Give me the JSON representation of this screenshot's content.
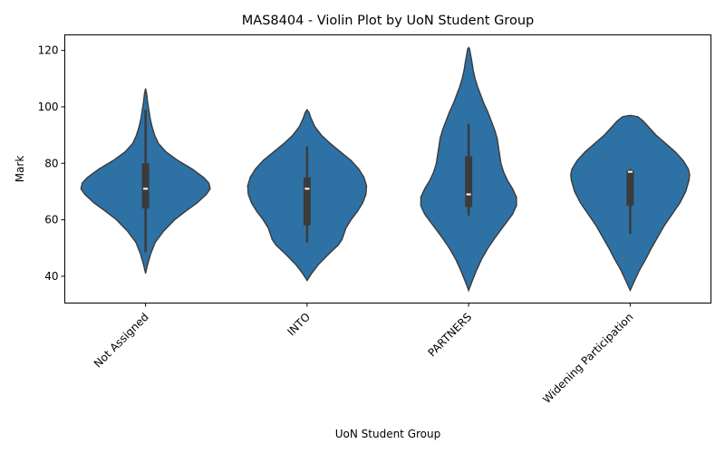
{
  "chart_data": {
    "type": "violin",
    "title": "MAS8404 - Violin Plot by UoN Student Group",
    "xlabel": "UoN Student Group",
    "ylabel": "Mark",
    "categories": [
      "Not Assigned",
      "INTO",
      "PARTNERS",
      "Widening Participation"
    ],
    "ylim": [
      30.5,
      125.5
    ],
    "yticks": [
      40,
      60,
      80,
      100,
      120
    ],
    "grid": false,
    "legend": "none",
    "fill_color": "#2e71a5",
    "edge_color": "#3b3b3b",
    "box_color": "#3b3b3b",
    "median_color": "#ffffff",
    "violins": [
      {
        "category": "Not Assigned",
        "range": [
          41,
          106.5
        ],
        "profile": [
          [
            41,
            0
          ],
          [
            44,
            0.03
          ],
          [
            48,
            0.08
          ],
          [
            52,
            0.15
          ],
          [
            56,
            0.28
          ],
          [
            60,
            0.45
          ],
          [
            63,
            0.62
          ],
          [
            66,
            0.8
          ],
          [
            69,
            0.94
          ],
          [
            71,
            1.0
          ],
          [
            73,
            0.98
          ],
          [
            75,
            0.9
          ],
          [
            78,
            0.72
          ],
          [
            81,
            0.5
          ],
          [
            84,
            0.32
          ],
          [
            87,
            0.2
          ],
          [
            90,
            0.14
          ],
          [
            93,
            0.1
          ],
          [
            96,
            0.07
          ],
          [
            99,
            0.05
          ],
          [
            102,
            0.03
          ],
          [
            104.5,
            0.018
          ],
          [
            106.5,
            0
          ]
        ],
        "max_half_width": 1.0,
        "whisker": [
          48.5,
          99
        ],
        "box": [
          64,
          80
        ],
        "median": 71
      },
      {
        "category": "INTO",
        "range": [
          38.5,
          99
        ],
        "profile": [
          [
            38.5,
            0
          ],
          [
            41,
            0.07
          ],
          [
            44,
            0.17
          ],
          [
            48,
            0.34
          ],
          [
            51,
            0.48
          ],
          [
            53,
            0.54
          ],
          [
            55,
            0.57
          ],
          [
            57,
            0.6
          ],
          [
            60,
            0.68
          ],
          [
            63,
            0.78
          ],
          [
            66,
            0.86
          ],
          [
            69,
            0.91
          ],
          [
            72,
            0.92
          ],
          [
            75,
            0.88
          ],
          [
            78,
            0.8
          ],
          [
            81,
            0.68
          ],
          [
            84,
            0.52
          ],
          [
            87,
            0.36
          ],
          [
            90,
            0.22
          ],
          [
            93,
            0.12
          ],
          [
            96,
            0.06
          ],
          [
            98,
            0.03
          ],
          [
            99,
            0
          ]
        ],
        "max_half_width": 0.92,
        "whisker": [
          52,
          86
        ],
        "box": [
          58,
          75
        ],
        "median": 71
      },
      {
        "category": "PARTNERS",
        "range": [
          35,
          121
        ],
        "profile": [
          [
            35,
            0
          ],
          [
            38,
            0.05
          ],
          [
            42,
            0.12
          ],
          [
            46,
            0.2
          ],
          [
            50,
            0.3
          ],
          [
            54,
            0.42
          ],
          [
            58,
            0.55
          ],
          [
            62,
            0.68
          ],
          [
            65,
            0.74
          ],
          [
            68,
            0.74
          ],
          [
            71,
            0.68
          ],
          [
            74,
            0.6
          ],
          [
            77,
            0.54
          ],
          [
            80,
            0.5
          ],
          [
            83,
            0.48
          ],
          [
            86,
            0.46
          ],
          [
            89,
            0.44
          ],
          [
            92,
            0.4
          ],
          [
            95,
            0.35
          ],
          [
            98,
            0.3
          ],
          [
            101,
            0.24
          ],
          [
            104,
            0.19
          ],
          [
            107,
            0.14
          ],
          [
            110,
            0.1
          ],
          [
            113,
            0.07
          ],
          [
            116,
            0.05
          ],
          [
            118.5,
            0.03
          ],
          [
            120.5,
            0.015
          ],
          [
            121,
            0
          ]
        ],
        "max_half_width": 0.74,
        "whisker": [
          61.5,
          94
        ],
        "box": [
          64.5,
          82.5
        ],
        "median": 69
      },
      {
        "category": "Widening Participation",
        "range": [
          35,
          97
        ],
        "profile": [
          [
            35,
            0
          ],
          [
            38,
            0.06
          ],
          [
            42,
            0.14
          ],
          [
            46,
            0.24
          ],
          [
            50,
            0.33
          ],
          [
            54,
            0.43
          ],
          [
            58,
            0.53
          ],
          [
            62,
            0.65
          ],
          [
            66,
            0.77
          ],
          [
            70,
            0.86
          ],
          [
            74,
            0.91
          ],
          [
            76,
            0.92
          ],
          [
            78,
            0.9
          ],
          [
            81,
            0.82
          ],
          [
            84,
            0.7
          ],
          [
            87,
            0.55
          ],
          [
            90,
            0.4
          ],
          [
            93,
            0.28
          ],
          [
            95,
            0.2
          ],
          [
            96.5,
            0.12
          ],
          [
            97,
            0
          ]
        ],
        "max_half_width": 0.92,
        "whisker": [
          55,
          78
        ],
        "box": [
          65,
          77.5
        ],
        "median": 77
      }
    ]
  }
}
